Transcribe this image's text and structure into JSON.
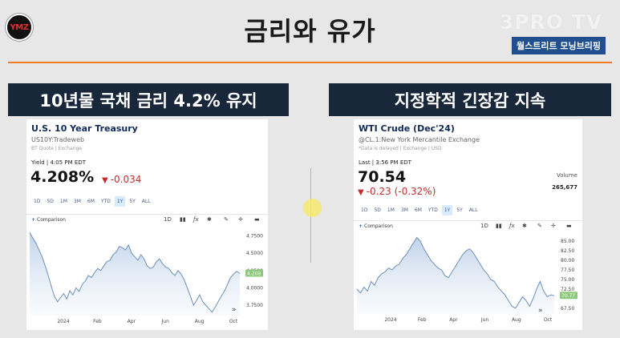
{
  "header": {
    "logo_text": "YMZ",
    "title": "금리와 유가",
    "brand": "3PRO TV",
    "brand_sub": "월스트리트 모닝브리핑"
  },
  "left": {
    "section_title": "10년물 국채 금리 4.2% 유지",
    "name": "U.S. 10 Year Treasury",
    "symbol": "US10Y:Tradeweb",
    "note": "BT Quote | Exchange",
    "quote_label": "Yield | 4:05 PM EDT",
    "price": "4.208%",
    "change": "-0.034",
    "change_icon": "down-triangle-icon",
    "ranges": [
      "1D",
      "5D",
      "1M",
      "3M",
      "6M",
      "YTD",
      "1Y",
      "5Y",
      "ALL"
    ],
    "active_range": "1Y",
    "comparison": "Comparison",
    "toolbar": {
      "d1": "1D"
    },
    "chart_data": {
      "type": "area",
      "x_labels": [
        "2024",
        "Feb",
        "Apr",
        "Jun",
        "Aug",
        "Oct"
      ],
      "y_ticks": [
        "4.7500",
        "4.5000",
        "4.2500",
        "4.0000",
        "3.7500"
      ],
      "ylim": [
        3.6,
        4.85
      ],
      "last_value_label": "4.208",
      "values": [
        4.8,
        4.72,
        4.65,
        4.55,
        4.45,
        4.32,
        4.18,
        4.02,
        3.88,
        3.8,
        3.86,
        3.92,
        3.84,
        3.96,
        3.9,
        4.0,
        3.95,
        4.05,
        4.1,
        4.18,
        4.15,
        4.22,
        4.28,
        4.25,
        4.32,
        4.38,
        4.4,
        4.48,
        4.52,
        4.6,
        4.58,
        4.55,
        4.62,
        4.5,
        4.45,
        4.4,
        4.48,
        4.42,
        4.32,
        4.28,
        4.3,
        4.38,
        4.42,
        4.35,
        4.3,
        4.28,
        4.22,
        4.18,
        4.25,
        4.2,
        4.12,
        4.0,
        3.88,
        3.75,
        3.82,
        3.9,
        3.8,
        3.75,
        3.7,
        3.65,
        3.72,
        3.8,
        3.88,
        3.95,
        4.05,
        4.15,
        4.2,
        4.24,
        4.21
      ]
    }
  },
  "right": {
    "section_title": "지정학적 긴장감 지속",
    "name": "WTI Crude (Dec'24)",
    "symbol": "@CL.1:New York Mercantile Exchange",
    "note": "*Data is delayed | Exchange | USD",
    "quote_label": "Last | 3:56 PM EDT",
    "price": "70.54",
    "change": "-0.23 (-0.32%)",
    "change_icon": "down-triangle-icon",
    "volume_label": "Volume",
    "volume_value": "265,677",
    "ranges": [
      "1D",
      "5D",
      "1M",
      "3M",
      "6M",
      "YTD",
      "1Y",
      "5Y",
      "ALL"
    ],
    "active_range": "1Y",
    "comparison": "Comparison",
    "toolbar": {
      "d1": "1D"
    },
    "chart_data": {
      "type": "area",
      "x_labels": [
        "2024",
        "Feb",
        "Apr",
        "Jun",
        "Aug",
        "Oct"
      ],
      "y_ticks": [
        "85.00",
        "82.50",
        "80.00",
        "77.50",
        "75.00",
        "72.50",
        "67.50"
      ],
      "ylim": [
        66,
        86.5
      ],
      "last_value_label": "70.77",
      "values": [
        72.5,
        71.5,
        73.0,
        72.0,
        74.5,
        73.5,
        75.5,
        76.5,
        77.0,
        78.0,
        77.5,
        78.5,
        79.0,
        80.5,
        81.5,
        83.0,
        84.5,
        86.0,
        85.0,
        83.0,
        81.5,
        80.0,
        79.0,
        78.0,
        77.5,
        76.0,
        75.5,
        77.0,
        78.5,
        80.0,
        81.5,
        82.5,
        83.0,
        82.0,
        80.5,
        79.0,
        77.5,
        76.5,
        75.0,
        74.5,
        73.0,
        72.0,
        71.0,
        69.5,
        68.0,
        67.5,
        69.0,
        70.5,
        69.5,
        68.0,
        70.0,
        72.5,
        74.5,
        72.0,
        70.5,
        71.0,
        70.77
      ]
    }
  }
}
